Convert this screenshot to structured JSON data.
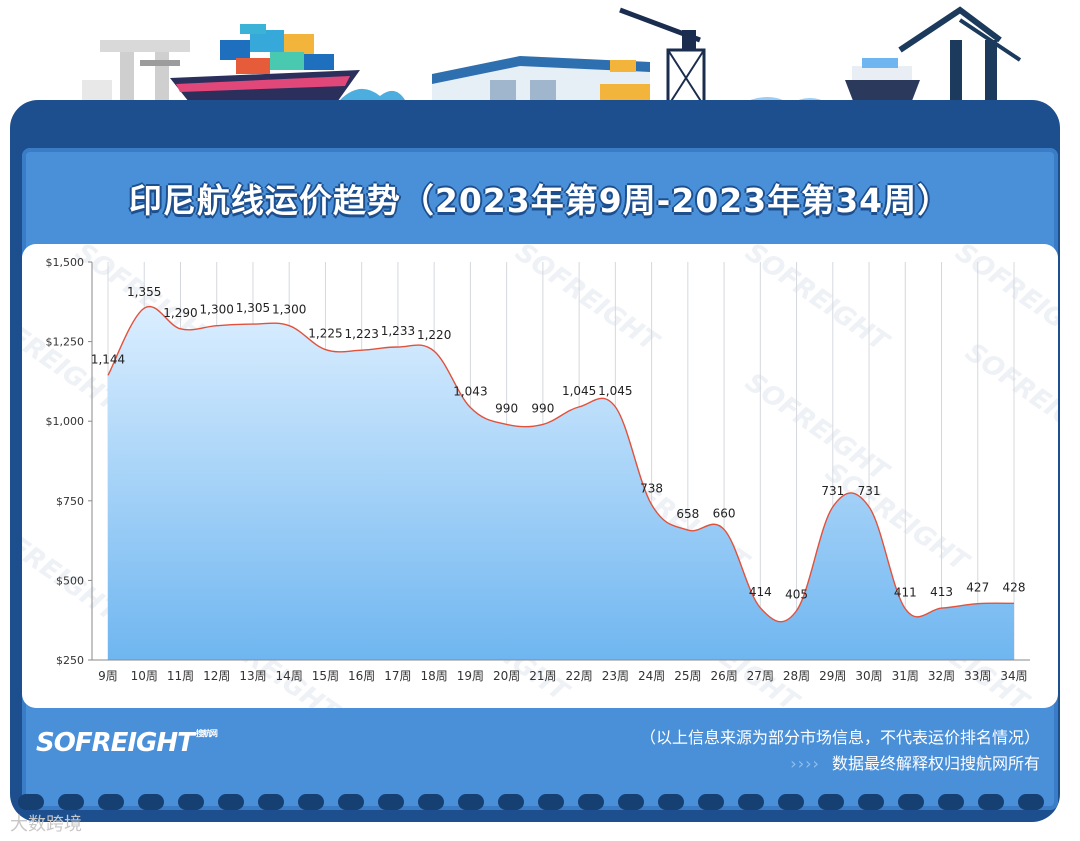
{
  "page": {
    "title": "印尼航线运价趋势（2023年第9周-2023年第34周）",
    "footer_note_1": "（以上信息来源为部分市场信息，不代表运价排名情况）",
    "footer_note_2": "数据最终解释权归搜航网所有",
    "brand": "SOFREIGHT",
    "brand_small": "搜航网",
    "watermark": "SOFREIGHT",
    "source_mark": "大数跨境",
    "colors": {
      "frame": "#1d4f8e",
      "panel": "#4a90d9",
      "line": "#e0523c",
      "area_top": "#dbeeff",
      "area_bottom": "#6fb6f0"
    }
  },
  "chart_data": {
    "type": "area",
    "title": "印尼航线运价趋势（2023年第9周-2023年第34周）",
    "categories": [
      "9周",
      "10周",
      "11周",
      "12周",
      "13周",
      "14周",
      "15周",
      "16周",
      "17周",
      "18周",
      "19周",
      "20周",
      "21周",
      "22周",
      "23周",
      "24周",
      "25周",
      "26周",
      "27周",
      "28周",
      "29周",
      "30周",
      "31周",
      "32周",
      "33周",
      "34周"
    ],
    "values": [
      1144,
      1355,
      1290,
      1300,
      1305,
      1300,
      1225,
      1223,
      1233,
      1220,
      1043,
      990,
      990,
      1045,
      1045,
      738,
      658,
      660,
      414,
      405,
      731,
      731,
      411,
      413,
      427,
      428
    ],
    "value_labels": [
      "1,144",
      "1,355",
      "1,290",
      "1,300",
      "1,305",
      "1,300",
      "1,225",
      "1,223",
      "1,233",
      "1,220",
      "1,043",
      "990",
      "990",
      "1,045",
      "1,045",
      "738",
      "658",
      "660",
      "414",
      "405",
      "731",
      "731",
      "411",
      "413",
      "427",
      "428"
    ],
    "ylim": [
      250,
      1500
    ],
    "yticks": [
      1500,
      1250,
      1000,
      750,
      500,
      250
    ],
    "ytick_labels": [
      "$1,500",
      "$1,250",
      "$1,000",
      "$750",
      "$500",
      "$250"
    ],
    "grid": "vertical",
    "legend": "none"
  }
}
